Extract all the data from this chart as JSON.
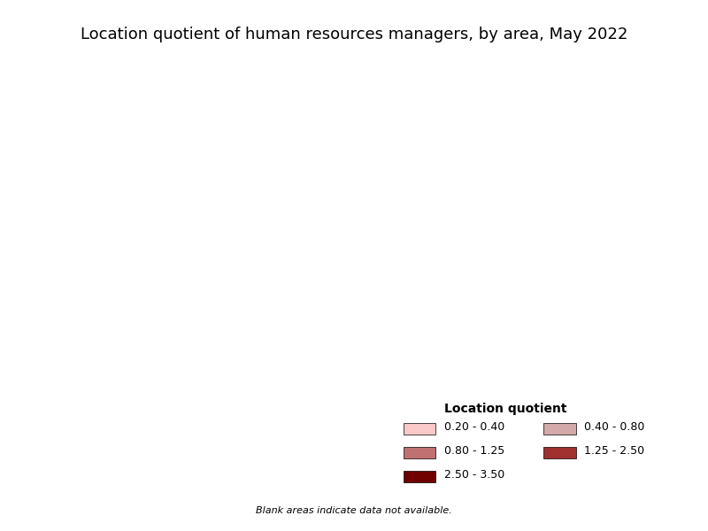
{
  "title": "Location quotient of human resources managers, by area, May 2022",
  "legend_title": "Location quotient",
  "legend_labels": [
    "0.20 - 0.40",
    "0.40 - 0.80",
    "0.80 - 1.25",
    "1.25 - 2.50",
    "2.50 - 3.50"
  ],
  "legend_colors": [
    "#f9c9c9",
    "#d4a9a9",
    "#c07070",
    "#a03030",
    "#700000"
  ],
  "blank_note": "Blank areas indicate data not available.",
  "background_color": "#ffffff",
  "figsize": [
    8.0,
    6.0
  ],
  "dpi": 100,
  "title_fontsize": 13,
  "legend_fontsize": 9,
  "legend_title_fontsize": 10
}
